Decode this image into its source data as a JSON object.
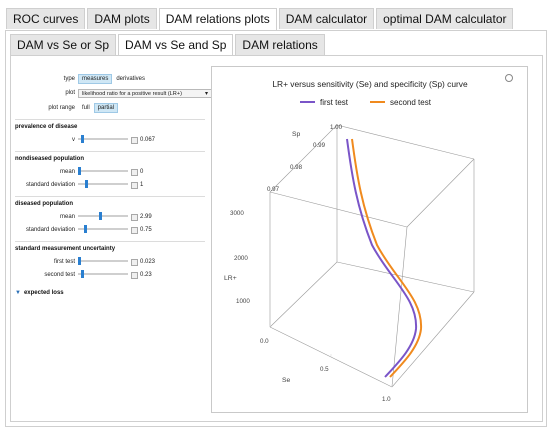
{
  "main_tabs": [
    "ROC curves",
    "DAM plots",
    "DAM relations plots",
    "DAM calculator",
    "optimal DAM calculator"
  ],
  "main_tabs_active": 2,
  "sub_tabs": [
    "DAM vs Se or Sp",
    "DAM vs Se and Sp",
    "DAM relations"
  ],
  "sub_tabs_active": 1,
  "controls": {
    "type": {
      "label": "type",
      "options": [
        "measures",
        "derivatives"
      ],
      "selected": "measures"
    },
    "plot": {
      "label": "plot",
      "value": "likelihood ratio for a positive result (LR+)"
    },
    "plot_range": {
      "label": "plot range",
      "options": [
        "full",
        "partial"
      ],
      "selected": "partial"
    },
    "prevalence": {
      "title": "prevalence of disease",
      "v": {
        "label": "v",
        "value": "0.067",
        "fraction": 0.067
      }
    },
    "nondiseased": {
      "title": "nondiseased population",
      "mean": {
        "label": "mean",
        "value": "0",
        "fraction": 0.0
      },
      "sd": {
        "label": "standard deviation",
        "value": "1",
        "fraction": 0.15
      }
    },
    "diseased": {
      "title": "diseased population",
      "mean": {
        "label": "mean",
        "value": "2.99",
        "fraction": 0.45
      },
      "sd": {
        "label": "standard deviation",
        "value": "0.75",
        "fraction": 0.12
      }
    },
    "uncertainty": {
      "title": "standard measurement uncertainty",
      "first": {
        "label": "first test",
        "value": "0.023",
        "fraction": 0.0
      },
      "second": {
        "label": "second test",
        "value": "0.23",
        "fraction": 0.06
      }
    },
    "expected_loss": "expected loss"
  },
  "chart_data": {
    "type": "line",
    "title": "LR+ versus sensitivity (Se) and specificity (Sp) curve",
    "legend": [
      "first test",
      "second test"
    ],
    "legend_placement": "top",
    "colors": {
      "first": "#7a55c8",
      "second": "#f08a1e"
    },
    "xlabel": "Se",
    "ylabel": "Sp",
    "zlabel": "LR+",
    "x_ticks": [
      "0.0",
      "0.5",
      "1.0"
    ],
    "y_ticks": [
      "1.00",
      "0.99",
      "0.98",
      "0.97"
    ],
    "z_ticks": [
      "3000",
      "2000",
      "1000"
    ],
    "xlim": [
      0,
      1
    ],
    "ylim": [
      0.97,
      1.0
    ],
    "zlim": [
      0,
      3000
    ]
  }
}
